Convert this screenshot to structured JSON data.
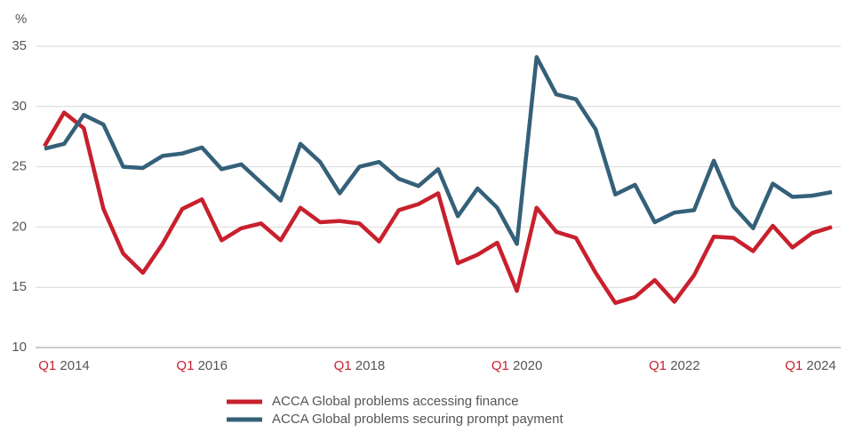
{
  "chart_data": {
    "type": "line",
    "y_unit": "%",
    "categories": [
      "Q1 2014",
      null,
      null,
      null,
      null,
      null,
      null,
      null,
      "Q1 2016",
      null,
      null,
      null,
      null,
      null,
      null,
      null,
      "Q1 2018",
      null,
      null,
      null,
      null,
      null,
      null,
      null,
      "Q1 2020",
      null,
      null,
      null,
      null,
      null,
      null,
      null,
      "Q1 2022",
      null,
      null,
      null,
      null,
      null,
      null,
      null,
      "Q1 2024"
    ],
    "series": [
      {
        "name": "ACCA Global problems accessing finance",
        "color": "#c8202d",
        "values": [
          26.7,
          29.5,
          28.2,
          21.5,
          17.8,
          16.2,
          18.6,
          21.5,
          22.3,
          18.9,
          19.9,
          20.3,
          18.9,
          21.6,
          20.4,
          20.5,
          20.3,
          18.8,
          21.4,
          21.9,
          22.8,
          17.0,
          17.7,
          18.7,
          14.7,
          21.6,
          19.6,
          19.1,
          16.2,
          13.7,
          14.2,
          15.6,
          13.8,
          16.0,
          19.2,
          19.1,
          18.0,
          20.1,
          18.3,
          19.5,
          20.0
        ]
      },
      {
        "name": "ACCA Global problems securing prompt payment",
        "color": "#356079",
        "values": [
          26.5,
          26.9,
          29.3,
          28.5,
          25.0,
          24.9,
          25.9,
          26.1,
          26.6,
          24.8,
          25.2,
          23.7,
          22.2,
          26.9,
          25.4,
          22.8,
          25.0,
          25.4,
          24.0,
          23.4,
          24.8,
          20.9,
          23.2,
          21.6,
          18.6,
          34.1,
          31.0,
          30.6,
          28.1,
          22.7,
          23.5,
          20.4,
          21.2,
          21.4,
          25.5,
          21.7,
          19.9,
          23.6,
          22.5,
          22.6,
          22.9
        ]
      }
    ],
    "ylim": [
      10,
      35
    ],
    "yticks": [
      10,
      15,
      20,
      25,
      30,
      35
    ],
    "grid": true,
    "legend": "bottom"
  }
}
